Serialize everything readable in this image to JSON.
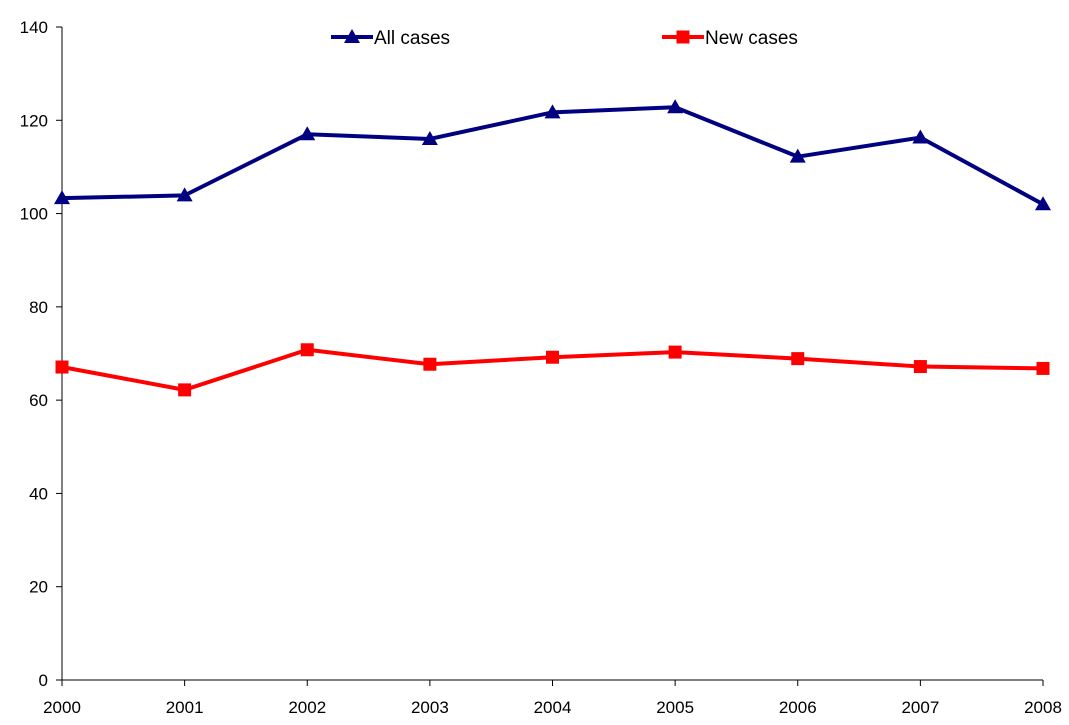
{
  "chart_data": {
    "type": "line",
    "title": "",
    "xlabel": "",
    "ylabel": "",
    "x": [
      "2000",
      "2001",
      "2002",
      "2003",
      "2004",
      "2005",
      "2006",
      "2007",
      "2008"
    ],
    "ylim": [
      0,
      140
    ],
    "yticks": [
      0,
      20,
      40,
      60,
      80,
      100,
      120,
      140
    ],
    "grid": false,
    "legend_position": "top",
    "series": [
      {
        "name": "All cases",
        "color": "#000080",
        "marker": "triangle",
        "values": [
          103.3,
          103.9,
          117.0,
          116.0,
          121.7,
          122.8,
          112.2,
          116.3,
          102.0
        ]
      },
      {
        "name": "New cases",
        "color": "#ff0000",
        "marker": "square",
        "values": [
          67.1,
          62.2,
          70.8,
          67.7,
          69.2,
          70.3,
          68.9,
          67.2,
          66.8
        ]
      }
    ]
  }
}
